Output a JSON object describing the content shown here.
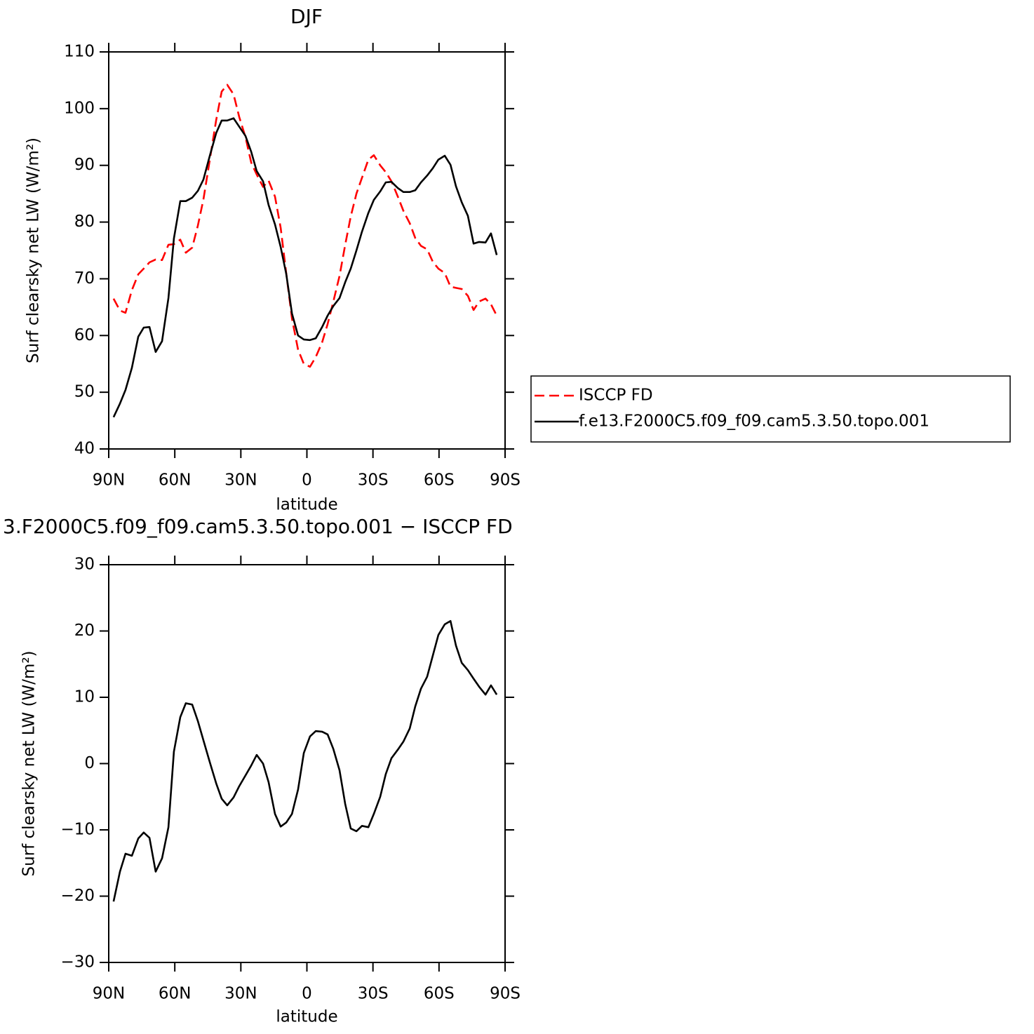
{
  "chart_data": [
    {
      "type": "line",
      "title": "DJF",
      "xlabel": "latitude",
      "ylabel": "Surf clearsky net LW (W/m²)",
      "x": [
        87.8,
        84.9,
        82.4,
        79.5,
        76.6,
        74.1,
        71.5,
        68.7,
        65.8,
        62.9,
        60.4,
        57.5,
        55.0,
        52.1,
        49.5,
        47.0,
        44.1,
        41.2,
        38.7,
        36.2,
        33.3,
        30.7,
        27.9,
        25.3,
        22.8,
        19.9,
        17.4,
        14.5,
        11.9,
        9.4,
        6.8,
        4.0,
        1.4,
        -1.4,
        -4.0,
        -6.9,
        -9.4,
        -12.0,
        -14.8,
        -17.4,
        -19.9,
        -22.5,
        -25.0,
        -27.9,
        -30.4,
        -33.3,
        -35.8,
        -38.4,
        -41.3,
        -43.8,
        -46.7,
        -49.2,
        -51.8,
        -54.6,
        -57.2,
        -59.7,
        -62.6,
        -65.2,
        -67.7,
        -70.3,
        -73.1,
        -75.7,
        -78.2,
        -81.1,
        -83.6,
        -86.2
      ],
      "series": [
        {
          "name": "ISCCP FD",
          "color": "#ff0000",
          "dashed": true,
          "values": [
            66.5,
            64.4,
            64.0,
            68.0,
            70.8,
            71.8,
            72.9,
            73.4,
            73.3,
            76.0,
            76.1,
            76.9,
            74.6,
            75.5,
            79.4,
            84.0,
            91.0,
            98.0,
            103.0,
            104.2,
            102.5,
            98.5,
            95.0,
            90.5,
            88.4,
            86.2,
            87.3,
            84.5,
            79.0,
            71.0,
            63.0,
            57.5,
            55.0,
            54.5,
            56.2,
            58.8,
            62.0,
            66.0,
            70.5,
            76.0,
            81.0,
            85.0,
            87.8,
            91.0,
            91.8,
            90.0,
            88.8,
            87.2,
            84.5,
            82.0,
            79.8,
            77.2,
            75.8,
            75.2,
            73.0,
            71.8,
            71.0,
            68.6,
            68.4,
            68.2,
            67.0,
            64.5,
            66.0,
            66.5,
            65.5,
            63.5
          ]
        },
        {
          "name": "f.e13.F2000C5.f09_f09.cam5.3.50.topo.001",
          "color": "#000000",
          "dashed": false,
          "values": [
            45.6,
            48.0,
            50.4,
            54.3,
            59.8,
            61.4,
            61.5,
            57.1,
            59.0,
            66.6,
            77.1,
            83.7,
            83.7,
            84.3,
            85.5,
            87.5,
            91.7,
            95.7,
            97.9,
            97.9,
            98.3,
            96.8,
            95.2,
            92.4,
            89.0,
            87.2,
            83.0,
            79.6,
            75.6,
            70.9,
            63.9,
            60.0,
            59.3,
            59.2,
            59.5,
            61.5,
            63.5,
            65.2,
            66.6,
            69.4,
            71.8,
            75.0,
            78.3,
            81.6,
            83.9,
            85.4,
            87.0,
            87.1,
            86.0,
            85.3,
            85.3,
            85.6,
            87.0,
            88.2,
            89.5,
            91.0,
            91.7,
            90.1,
            86.3,
            83.5,
            81.1,
            76.2,
            76.5,
            76.4,
            78.0,
            74.2
          ]
        }
      ],
      "xlim": [
        90,
        -90
      ],
      "xticks": [
        {
          "value": 90,
          "label": "90N"
        },
        {
          "value": 60,
          "label": "60N"
        },
        {
          "value": 30,
          "label": "30N"
        },
        0,
        {
          "value": -30,
          "label": "30S"
        },
        {
          "value": -60,
          "label": "60S"
        },
        {
          "value": -90,
          "label": "90S"
        }
      ],
      "ylim": [
        40,
        110
      ],
      "yticks": [
        40,
        50,
        60,
        70,
        80,
        90,
        100,
        110
      ],
      "legend": "right"
    },
    {
      "type": "line",
      "title": "3.F2000C5.f09_f09.cam5.3.50.topo.001 − ISCCP FD",
      "xlabel": "latitude",
      "ylabel": "Surf clearsky net LW (W/m²)",
      "x": [
        87.8,
        84.9,
        82.4,
        79.5,
        76.6,
        74.1,
        71.5,
        68.7,
        65.8,
        62.9,
        60.4,
        57.5,
        55.0,
        52.1,
        49.5,
        47.0,
        44.1,
        41.2,
        38.7,
        36.2,
        33.3,
        30.7,
        27.9,
        25.3,
        22.8,
        19.9,
        17.4,
        14.5,
        11.9,
        9.4,
        6.8,
        4.0,
        1.4,
        -1.4,
        -4.0,
        -6.9,
        -9.4,
        -12.0,
        -14.8,
        -17.4,
        -19.9,
        -22.5,
        -25.0,
        -27.9,
        -30.4,
        -33.3,
        -35.8,
        -38.4,
        -41.3,
        -43.8,
        -46.7,
        -49.2,
        -51.8,
        -54.6,
        -57.2,
        -59.7,
        -62.6,
        -65.2,
        -67.7,
        -70.3,
        -73.1,
        -75.7,
        -78.2,
        -81.1,
        -83.6,
        -86.2
      ],
      "values": [
        -20.8,
        -16.3,
        -13.6,
        -13.9,
        -11.3,
        -10.4,
        -11.2,
        -16.3,
        -14.3,
        -9.6,
        1.8,
        7.0,
        9.1,
        8.9,
        6.4,
        3.5,
        0.2,
        -3.0,
        -5.3,
        -6.3,
        -5.1,
        -3.4,
        -1.8,
        -0.3,
        1.3,
        0.0,
        -2.8,
        -7.6,
        -9.5,
        -8.9,
        -7.6,
        -3.9,
        1.6,
        4.1,
        4.9,
        4.8,
        4.4,
        2.2,
        -1.0,
        -6.1,
        -9.8,
        -10.2,
        -9.4,
        -9.6,
        -7.6,
        -5.0,
        -1.6,
        0.8,
        2.1,
        3.3,
        5.3,
        8.6,
        11.3,
        13.1,
        16.3,
        19.4,
        21.0,
        21.5,
        17.8,
        15.2,
        14.1,
        12.8,
        11.6,
        10.4,
        11.8,
        10.4
      ],
      "color": "#000000",
      "xlim": [
        90,
        -90
      ],
      "xticks": [
        {
          "value": 90,
          "label": "90N"
        },
        {
          "value": 60,
          "label": "60N"
        },
        {
          "value": 30,
          "label": "30N"
        },
        0,
        {
          "value": -30,
          "label": "30S"
        },
        {
          "value": -60,
          "label": "60S"
        },
        {
          "value": -90,
          "label": "90S"
        }
      ],
      "ylim": [
        -30,
        30
      ],
      "yticks": [
        {
          "value": -30,
          "label": "−30"
        },
        {
          "value": -20,
          "label": "−20"
        },
        {
          "value": -10,
          "label": "−10"
        },
        0,
        10,
        20,
        30
      ]
    }
  ]
}
